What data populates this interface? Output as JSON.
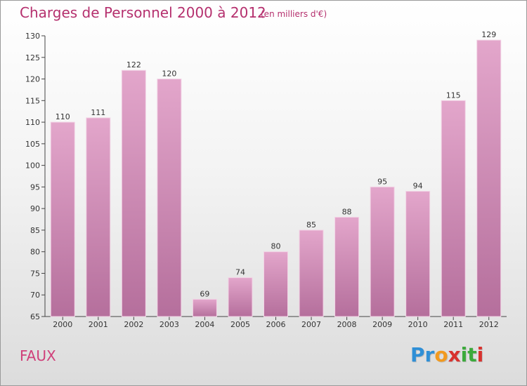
{
  "header": {
    "title": "Charges de Personnel 2000 à 2012",
    "subtitle": "(en milliers d'€)"
  },
  "footer": {
    "place": "FAUX",
    "logo": {
      "letters": [
        "P",
        "r",
        "o",
        "x",
        "i",
        "t",
        "i"
      ],
      "colors": [
        "#2f8fd6",
        "#2f8fd6",
        "#f29a1f",
        "#d8322e",
        "#3caa3c",
        "#3caa3c",
        "#d8322e"
      ]
    }
  },
  "chart_data": {
    "type": "bar",
    "title": "Charges de Personnel 2000 à 2012",
    "subtitle": "(en milliers d'€)",
    "categories": [
      "2000",
      "2001",
      "2002",
      "2003",
      "2004",
      "2005",
      "2006",
      "2007",
      "2008",
      "2009",
      "2010",
      "2011",
      "2012"
    ],
    "values": [
      110,
      111,
      122,
      120,
      69,
      74,
      80,
      85,
      88,
      95,
      94,
      115,
      129
    ],
    "ylim": [
      65,
      130
    ],
    "yticks": [
      65,
      70,
      75,
      80,
      85,
      90,
      95,
      100,
      105,
      110,
      115,
      120,
      125,
      130
    ],
    "grid": false,
    "bar_color": "#d98fb9",
    "bar_color_dark": "#b86a98"
  }
}
